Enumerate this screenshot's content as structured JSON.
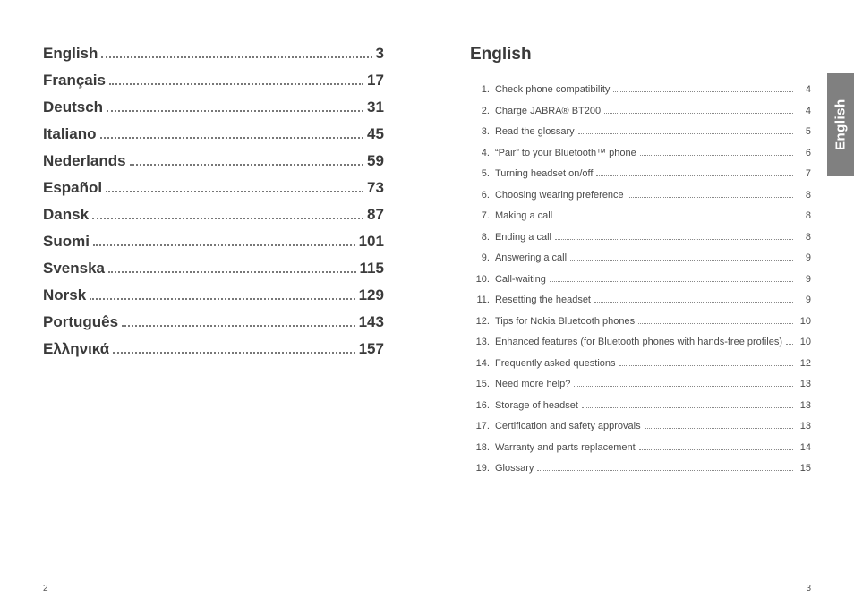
{
  "leftPage": {
    "languages": [
      {
        "name": "English",
        "page": "3"
      },
      {
        "name": "Français",
        "page": "17"
      },
      {
        "name": "Deutsch",
        "page": "31"
      },
      {
        "name": "Italiano",
        "page": "45"
      },
      {
        "name": "Nederlands",
        "page": "59"
      },
      {
        "name": "Español",
        "page": "73"
      },
      {
        "name": "Dansk",
        "page": "87"
      },
      {
        "name": "Suomi",
        "page": "101"
      },
      {
        "name": "Svenska",
        "page": "115"
      },
      {
        "name": "Norsk",
        "page": "129"
      },
      {
        "name": "Português",
        "page": "143"
      },
      {
        "name": "Ελληνικά",
        "page": "157"
      }
    ],
    "pageNumber": "2"
  },
  "rightPage": {
    "title": "English",
    "sideTab": "English",
    "toc": [
      {
        "n": "1.",
        "label": "Check phone compatibility",
        "page": "4"
      },
      {
        "n": "2.",
        "label": "Charge JABRA® BT200",
        "page": "4"
      },
      {
        "n": "3.",
        "label": "Read the glossary",
        "page": "5"
      },
      {
        "n": "4.",
        "label": "“Pair” to your Bluetooth™ phone",
        "page": "6"
      },
      {
        "n": "5.",
        "label": "Turning headset on/off",
        "page": "7"
      },
      {
        "n": "6.",
        "label": "Choosing wearing preference",
        "page": "8"
      },
      {
        "n": "7.",
        "label": "Making a call",
        "page": "8"
      },
      {
        "n": "8.",
        "label": "Ending a call",
        "page": "8"
      },
      {
        "n": "9.",
        "label": "Answering a call",
        "page": "9"
      },
      {
        "n": "10.",
        "label": "Call-waiting",
        "page": "9"
      },
      {
        "n": "11.",
        "label": "Resetting the headset",
        "page": "9"
      },
      {
        "n": "12.",
        "label": "Tips for Nokia Bluetooth phones",
        "page": "10"
      },
      {
        "n": "13.",
        "label": "Enhanced features (for Bluetooth phones with hands-free profiles)",
        "page": "10"
      },
      {
        "n": "14.",
        "label": "Frequently asked questions",
        "page": "12"
      },
      {
        "n": "15.",
        "label": "Need more help?",
        "page": "13"
      },
      {
        "n": "16.",
        "label": "Storage of headset",
        "page": "13"
      },
      {
        "n": "17.",
        "label": "Certification and safety approvals",
        "page": "13"
      },
      {
        "n": "18.",
        "label": "Warranty and parts replacement",
        "page": "14"
      },
      {
        "n": "19.",
        "label": "Glossary",
        "page": "15"
      }
    ],
    "pageNumber": "3"
  }
}
